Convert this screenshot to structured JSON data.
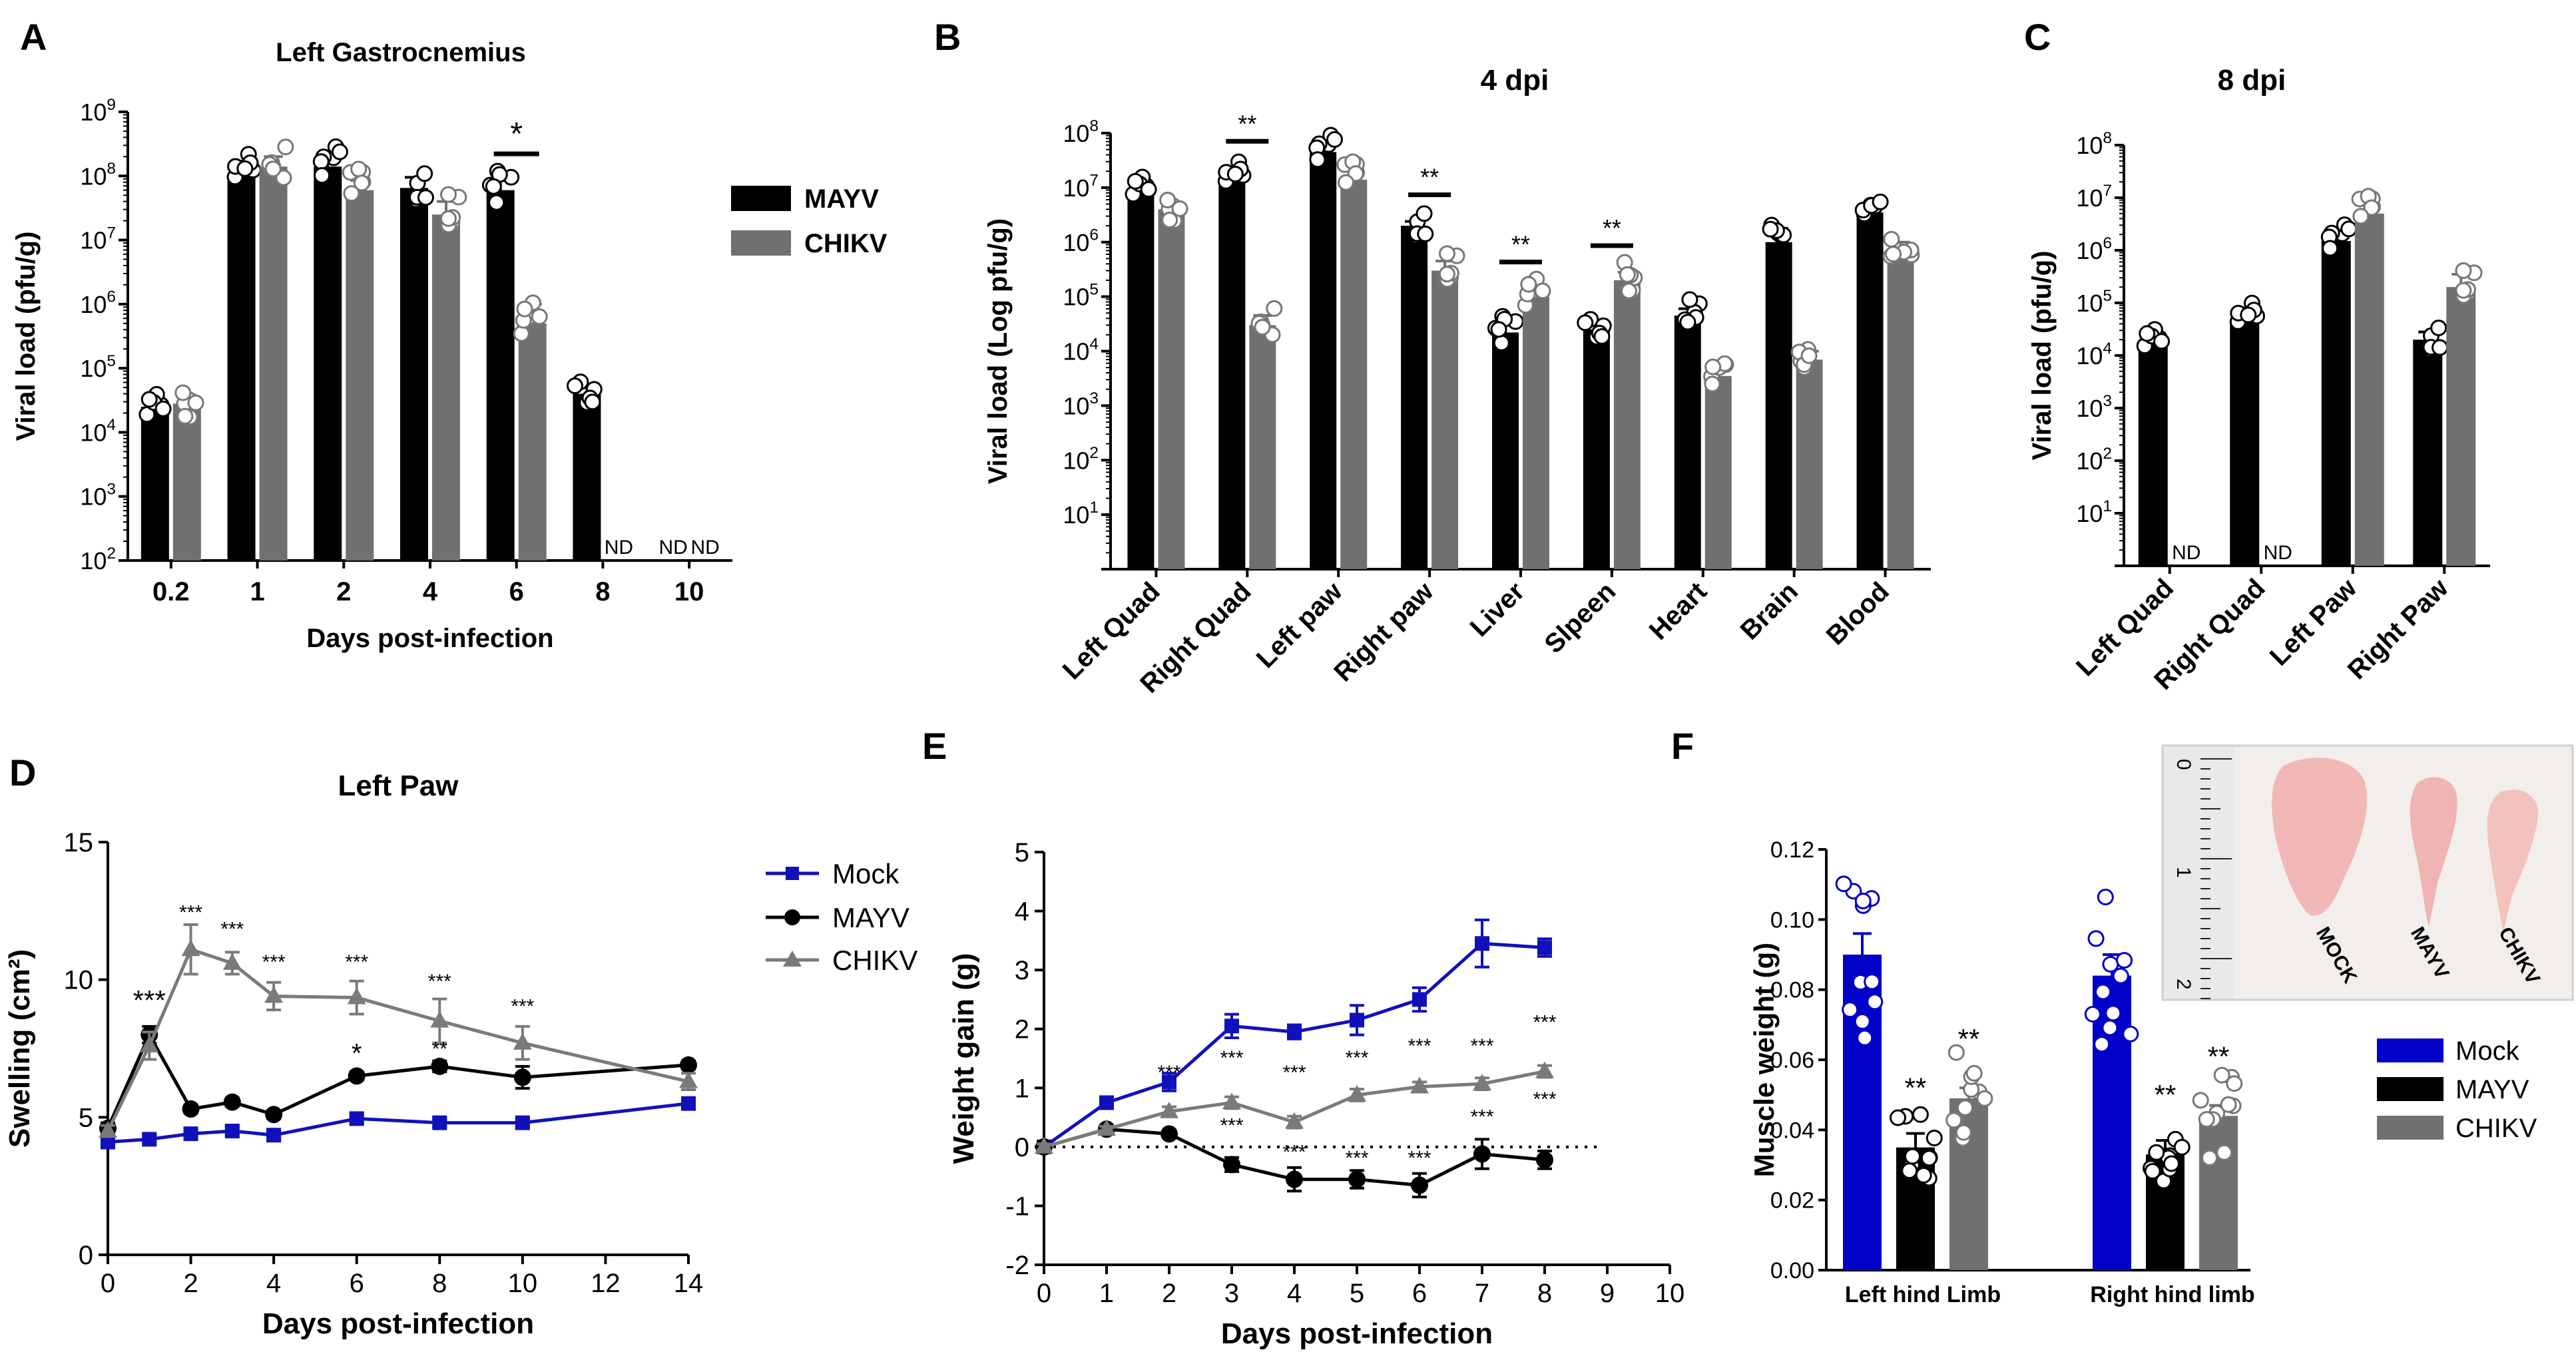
{
  "panels": {
    "A": {
      "letter": "A",
      "title": "Left Gastrocnemius"
    },
    "B": {
      "letter": "B",
      "title": "4 dpi"
    },
    "C": {
      "letter": "C",
      "title": "8 dpi"
    },
    "D": {
      "letter": "D",
      "title": "Left Paw"
    },
    "E": {
      "letter": "E",
      "title": ""
    },
    "F": {
      "letter": "F",
      "title": ""
    }
  },
  "legends": {
    "top": [
      {
        "name": "MAYV",
        "color": "#000000"
      },
      {
        "name": "CHIKV",
        "color": "#707070"
      }
    ],
    "lines": [
      {
        "name": "Mock",
        "color": "#1111bb",
        "marker": "square"
      },
      {
        "name": "MAYV",
        "color": "#000000",
        "marker": "circle"
      },
      {
        "name": "CHIKV",
        "color": "#7a7a7a",
        "marker": "triangle"
      }
    ],
    "muscle": [
      {
        "name": "Mock",
        "color": "#0000c8"
      },
      {
        "name": "MAYV",
        "color": "#000000"
      },
      {
        "name": "CHIKV",
        "color": "#707070"
      }
    ]
  },
  "photo": {
    "labels": [
      "MOCK",
      "MAYV",
      "CHIKV"
    ],
    "ruler_marks": [
      "0",
      "1",
      "2"
    ]
  },
  "chart_data": [
    {
      "id": "A",
      "type": "bar",
      "scale": "log",
      "title": "Left Gastrocnemius",
      "xlabel": "Days post-infection",
      "ylabel": "Viral load (pfu/g)",
      "ylim_exp": [
        2,
        9
      ],
      "categories": [
        "0.2",
        "1",
        "2",
        "4",
        "6",
        "8",
        "10"
      ],
      "series": [
        {
          "name": "MAYV",
          "color": "#000000",
          "values": [
            25000,
            110000000,
            140000000,
            65000000,
            60000000,
            40000,
            null
          ],
          "errors": [
            9000,
            60000000,
            90000000,
            30000000,
            25000000,
            15000,
            null
          ]
        },
        {
          "name": "CHIKV",
          "color": "#707070",
          "values": [
            28000,
            140000000,
            60000000,
            25000000,
            500000,
            null,
            null
          ],
          "errors": [
            10000,
            60000000,
            25000000,
            15000000,
            500000,
            null,
            null
          ]
        }
      ],
      "annotations": [
        {
          "text": "*",
          "category": "6"
        },
        {
          "text": "ND",
          "category": "8",
          "series": "CHIKV"
        },
        {
          "text": "ND",
          "category": "10",
          "series": "MAYV"
        },
        {
          "text": "ND",
          "category": "10",
          "series": "CHIKV"
        }
      ]
    },
    {
      "id": "B",
      "type": "bar",
      "scale": "log",
      "title": "4 dpi",
      "xlabel": "",
      "ylabel": "Viral load (Log pfu/g)",
      "ylim_exp": [
        0,
        8
      ],
      "categories": [
        "Left Quad",
        "Right Quad",
        "Left paw",
        "Right paw",
        "Liver",
        "Slpeen",
        "Heart",
        "Brain",
        "Blood"
      ],
      "series": [
        {
          "name": "MAYV",
          "color": "#000000",
          "values": [
            10000000,
            15000000,
            45000000,
            2000000,
            22000,
            25000,
            45000,
            1000000,
            3500000
          ],
          "errors": [
            6000000,
            8000000,
            25000000,
            400000,
            10000,
            8000,
            15000,
            800000,
            1500000
          ]
        },
        {
          "name": "CHIKV",
          "color": "#707070",
          "values": [
            4000000,
            30000,
            14000000,
            300000,
            100000,
            200000,
            3500,
            7000,
            600000
          ],
          "errors": [
            1500000,
            15000,
            6000000,
            150000,
            40000,
            80000,
            3000,
            3000,
            400000
          ]
        }
      ],
      "annotations": [
        {
          "text": "**",
          "category": "Right Quad"
        },
        {
          "text": "**",
          "category": "Right paw"
        },
        {
          "text": "**",
          "category": "Liver"
        },
        {
          "text": "**",
          "category": "Slpeen"
        }
      ]
    },
    {
      "id": "C",
      "type": "bar",
      "scale": "log",
      "title": "8 dpi",
      "xlabel": "",
      "ylabel": "Viral load (pfu/g)",
      "ylim_exp": [
        0,
        8
      ],
      "categories": [
        "Left Quad",
        "Right Quad",
        "Left Paw",
        "Right Paw"
      ],
      "series": [
        {
          "name": "MAYV",
          "color": "#000000",
          "values": [
            20000,
            50000,
            1500000,
            20000
          ],
          "errors": [
            10000,
            30000,
            700000,
            8000
          ]
        },
        {
          "name": "CHIKV",
          "color": "#707070",
          "values": [
            null,
            null,
            5000000,
            200000
          ],
          "errors": [
            null,
            null,
            5000000,
            150000
          ]
        }
      ],
      "annotations": [
        {
          "text": "ND",
          "category": "Left Quad",
          "series": "CHIKV"
        },
        {
          "text": "ND",
          "category": "Right Quad",
          "series": "CHIKV"
        }
      ]
    },
    {
      "id": "D",
      "type": "line",
      "title": "Left Paw",
      "xlabel": "Days post-infection",
      "ylabel": "Swelling  (cm²)",
      "xlim": [
        0,
        14
      ],
      "ylim": [
        0,
        15
      ],
      "xticks": [
        0,
        2,
        4,
        6,
        8,
        10,
        12,
        14
      ],
      "yticks": [
        0,
        5,
        10,
        15
      ],
      "series": [
        {
          "name": "Mock",
          "color": "#1111bb",
          "marker": "square",
          "x": [
            0,
            1,
            2,
            3,
            4,
            6,
            8,
            10,
            14
          ],
          "y": [
            4.1,
            4.2,
            4.4,
            4.5,
            4.35,
            4.95,
            4.8,
            4.8,
            5.5
          ],
          "err": [
            0.15,
            0.15,
            0.2,
            0.15,
            0.15,
            0.15,
            0.15,
            0.15,
            0.2
          ]
        },
        {
          "name": "MAYV",
          "color": "#000000",
          "marker": "circle",
          "x": [
            0,
            1,
            2,
            3,
            4,
            6,
            8,
            10,
            14
          ],
          "y": [
            4.6,
            8.0,
            5.3,
            5.55,
            5.1,
            6.5,
            6.85,
            6.45,
            6.9
          ],
          "err": [
            0.2,
            0.3,
            0.15,
            0.15,
            0.15,
            0.15,
            0.2,
            0.4,
            0.15
          ]
        },
        {
          "name": "CHIKV",
          "color": "#7a7a7a",
          "marker": "triangle",
          "x": [
            0,
            1,
            2,
            3,
            4,
            6,
            8,
            10,
            14
          ],
          "y": [
            4.5,
            7.6,
            11.1,
            10.6,
            9.4,
            9.35,
            8.5,
            7.7,
            6.3
          ],
          "err": [
            0.2,
            0.5,
            0.9,
            0.4,
            0.5,
            0.6,
            0.8,
            0.6,
            0.3
          ]
        }
      ],
      "annotations": [
        {
          "text": "***",
          "x": 1,
          "y": 8.9,
          "size": "lg"
        },
        {
          "text": "***",
          "x": 2,
          "y": 12.2,
          "size": "sm"
        },
        {
          "text": "***",
          "x": 3,
          "y": 11.6,
          "size": "sm"
        },
        {
          "text": "***",
          "x": 4,
          "y": 10.4,
          "size": "sm"
        },
        {
          "text": "***",
          "x": 6,
          "y": 10.4,
          "size": "sm"
        },
        {
          "text": "***",
          "x": 8,
          "y": 9.7,
          "size": "sm"
        },
        {
          "text": "***",
          "x": 10,
          "y": 8.8,
          "size": "sm"
        },
        {
          "text": "*",
          "x": 6,
          "y": 7.0,
          "size": "md"
        },
        {
          "text": "**",
          "x": 8,
          "y": 7.25,
          "size": "sm"
        }
      ]
    },
    {
      "id": "E",
      "type": "line",
      "title": "",
      "xlabel": "Days post-infection",
      "ylabel": "Weight gain (g)",
      "xlim": [
        0,
        10
      ],
      "ylim": [
        -2,
        5
      ],
      "xticks": [
        0,
        1,
        2,
        3,
        4,
        5,
        6,
        7,
        8,
        9,
        10
      ],
      "yticks": [
        -2,
        -1,
        0,
        1,
        2,
        3,
        4,
        5
      ],
      "baseline": 0,
      "series": [
        {
          "name": "Mock",
          "color": "#1111bb",
          "marker": "square",
          "x": [
            0,
            1,
            2,
            3,
            4,
            5,
            6,
            7,
            8
          ],
          "y": [
            0,
            0.75,
            1.1,
            2.05,
            1.95,
            2.15,
            2.5,
            3.45,
            3.38
          ],
          "err": [
            0.05,
            0.08,
            0.15,
            0.2,
            0.12,
            0.25,
            0.2,
            0.4,
            0.15
          ]
        },
        {
          "name": "MAYV",
          "color": "#000000",
          "marker": "circle",
          "x": [
            0,
            1,
            2,
            3,
            4,
            5,
            6,
            7,
            8
          ],
          "y": [
            0,
            0.3,
            0.22,
            -0.3,
            -0.55,
            -0.55,
            -0.65,
            -0.12,
            -0.22
          ],
          "err": [
            0.05,
            0.05,
            0.05,
            0.12,
            0.2,
            0.15,
            0.2,
            0.25,
            0.15
          ]
        },
        {
          "name": "CHIKV",
          "color": "#7a7a7a",
          "marker": "triangle",
          "x": [
            0,
            1,
            2,
            3,
            4,
            5,
            6,
            7,
            8
          ],
          "y": [
            0,
            0.3,
            0.6,
            0.75,
            0.42,
            0.88,
            1.02,
            1.07,
            1.28
          ],
          "err": [
            0.05,
            0.05,
            0.08,
            0.1,
            0.1,
            0.1,
            0.08,
            0.1,
            0.1
          ]
        }
      ],
      "annotations": [
        {
          "text": "***",
          "x": 2,
          "y": 1.15
        },
        {
          "text": "***",
          "x": 3,
          "y": 1.4
        },
        {
          "text": "***",
          "x": 4,
          "y": 1.15
        },
        {
          "text": "***",
          "x": 5,
          "y": 1.4
        },
        {
          "text": "***",
          "x": 6,
          "y": 1.6
        },
        {
          "text": "***",
          "x": 7,
          "y": 1.6
        },
        {
          "text": "***",
          "x": 8,
          "y": 2.0
        },
        {
          "text": "***",
          "x": 3,
          "y": 0.25
        },
        {
          "text": "***",
          "x": 4,
          "y": -0.2
        },
        {
          "text": "***",
          "x": 5,
          "y": -0.3
        },
        {
          "text": "***",
          "x": 6,
          "y": -0.3
        },
        {
          "text": "***",
          "x": 7,
          "y": 0.4
        },
        {
          "text": "***",
          "x": 8,
          "y": 0.7
        }
      ]
    },
    {
      "id": "F",
      "type": "bar",
      "title": "",
      "xlabel": "",
      "ylabel": "Muscle weight (g)",
      "ylim": [
        0,
        0.12
      ],
      "yticks": [
        0.0,
        0.02,
        0.04,
        0.06,
        0.08,
        0.1,
        0.12
      ],
      "categories": [
        "Left hind Limb",
        "Right hind limb"
      ],
      "series": [
        {
          "name": "Mock",
          "color": "#0000c8",
          "values": [
            0.09,
            0.084
          ],
          "errors": [
            0.006,
            0.006
          ]
        },
        {
          "name": "MAYV",
          "color": "#000000",
          "values": [
            0.035,
            0.033
          ],
          "errors": [
            0.004,
            0.004
          ]
        },
        {
          "name": "CHIKV",
          "color": "#707070",
          "values": [
            0.049,
            0.044
          ],
          "errors": [
            0.003,
            0.003
          ]
        }
      ],
      "annotations": [
        {
          "text": "**",
          "category": "Left hind Limb",
          "series": "MAYV"
        },
        {
          "text": "**",
          "category": "Left hind Limb",
          "series": "CHIKV"
        },
        {
          "text": "**",
          "category": "Right hind limb",
          "series": "MAYV"
        },
        {
          "text": "**",
          "category": "Right hind limb",
          "series": "CHIKV"
        }
      ]
    }
  ]
}
